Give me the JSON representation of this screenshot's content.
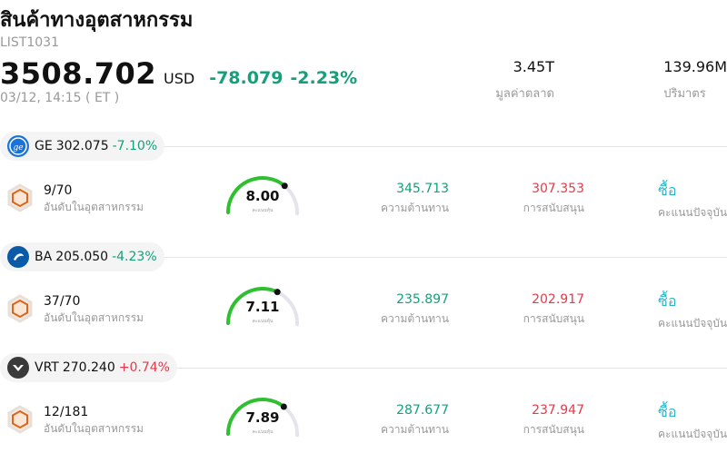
{
  "header": {
    "title": "สินค้าทางอุตสาหกรรม",
    "code": "LIST1031",
    "price": "3508.702",
    "currency": "USD",
    "change": "-78.079",
    "change_pct": "-2.23%",
    "time": "03/12, 14:15  ( ET )",
    "market_cap": {
      "value": "3.45T",
      "label": "มูลค่าตลาด"
    },
    "volume": {
      "value": "139.96M",
      "label": "ปริมาตร"
    }
  },
  "labels": {
    "rank": "อันดับในอุตสาหกรรม",
    "gauge": "คะแนนหุ้น",
    "resistance": "ความต้านทาน",
    "support": "การสนับสนุน",
    "rating": "คะแนนปัจจุบัน",
    "buy": "ซื้อ"
  },
  "colors": {
    "negative": "#14a07a",
    "positive": "#e6394b",
    "gauge": "#2ec02e",
    "buy": "#2bb5c9"
  },
  "stocks": [
    {
      "symbol": "GE",
      "price": "302.075",
      "change": "-7.10%",
      "logo": "ge-logo-icon",
      "rank": "9/70",
      "score": "8.00",
      "score_fraction": 0.8,
      "resistance": "345.713",
      "support": "307.353",
      "rating": "ซื้อ"
    },
    {
      "symbol": "BA",
      "price": "205.050",
      "change": "-4.23%",
      "logo": "boeing-logo-icon",
      "rank": "37/70",
      "score": "7.11",
      "score_fraction": 0.711,
      "resistance": "235.897",
      "support": "202.917",
      "rating": "ซื้อ"
    },
    {
      "symbol": "VRT",
      "price": "270.240",
      "change": "+0.74%",
      "logo": "vertiv-logo-icon",
      "rank": "12/181",
      "score": "7.89",
      "score_fraction": 0.789,
      "resistance": "287.677",
      "support": "237.947",
      "rating": "ซื้อ"
    }
  ]
}
